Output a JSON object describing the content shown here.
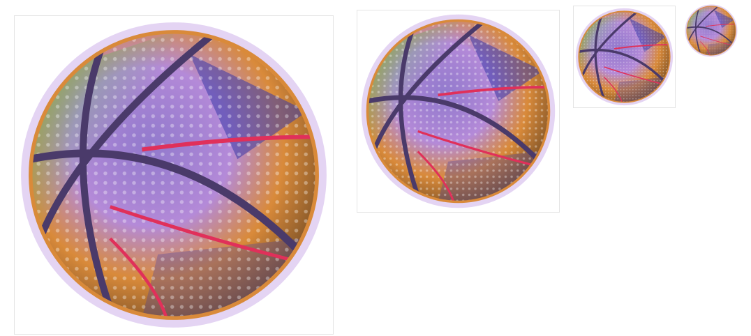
{
  "thumbnails": [
    {
      "icon": "basketball-image",
      "scale": "large"
    },
    {
      "icon": "basketball-image",
      "scale": "medium"
    },
    {
      "icon": "basketball-image",
      "scale": "small"
    },
    {
      "icon": "basketball-image",
      "scale": "tiny"
    }
  ],
  "colors": {
    "background": "#ffffff",
    "frame_border": "#e4e4e4",
    "ball_orange": "#d98a3a",
    "ball_purple": "#7f63c4",
    "ball_blue": "#3a3aa8",
    "ball_green": "#4fc44f",
    "seam_red": "#e0305a"
  }
}
